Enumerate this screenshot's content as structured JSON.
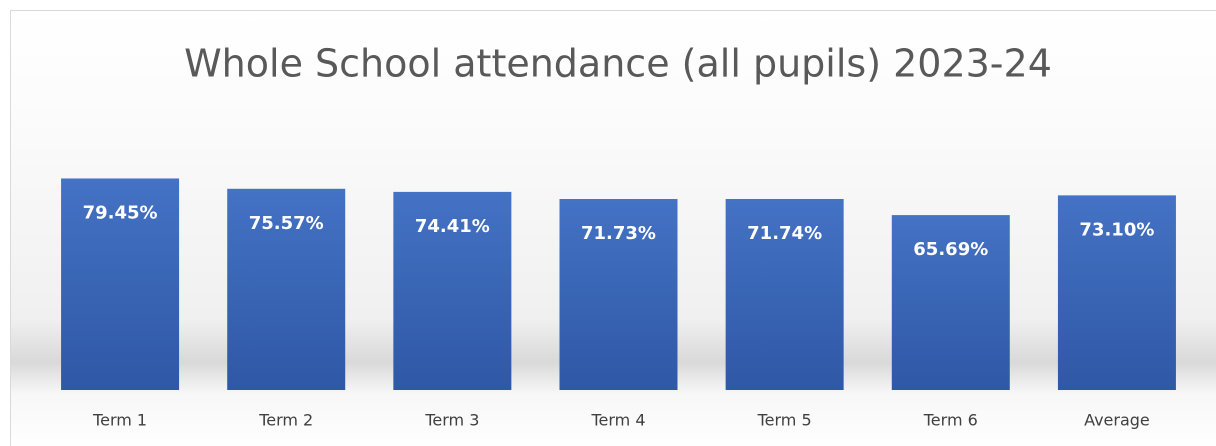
{
  "chart_data": {
    "type": "bar",
    "title": "Whole School attendance (all pupils) 2023-24",
    "categories": [
      "Term 1",
      "Term 2",
      "Term 3",
      "Term 4",
      "Term 5",
      "Term 6",
      "Average"
    ],
    "values": [
      79.45,
      75.57,
      74.41,
      71.73,
      71.74,
      65.69,
      73.1
    ],
    "value_labels": [
      "79.45%",
      "75.57%",
      "74.41%",
      "71.73%",
      "71.74%",
      "65.69%",
      "73.10%"
    ],
    "color": "#4472c4",
    "ylim": [
      0,
      80
    ]
  }
}
